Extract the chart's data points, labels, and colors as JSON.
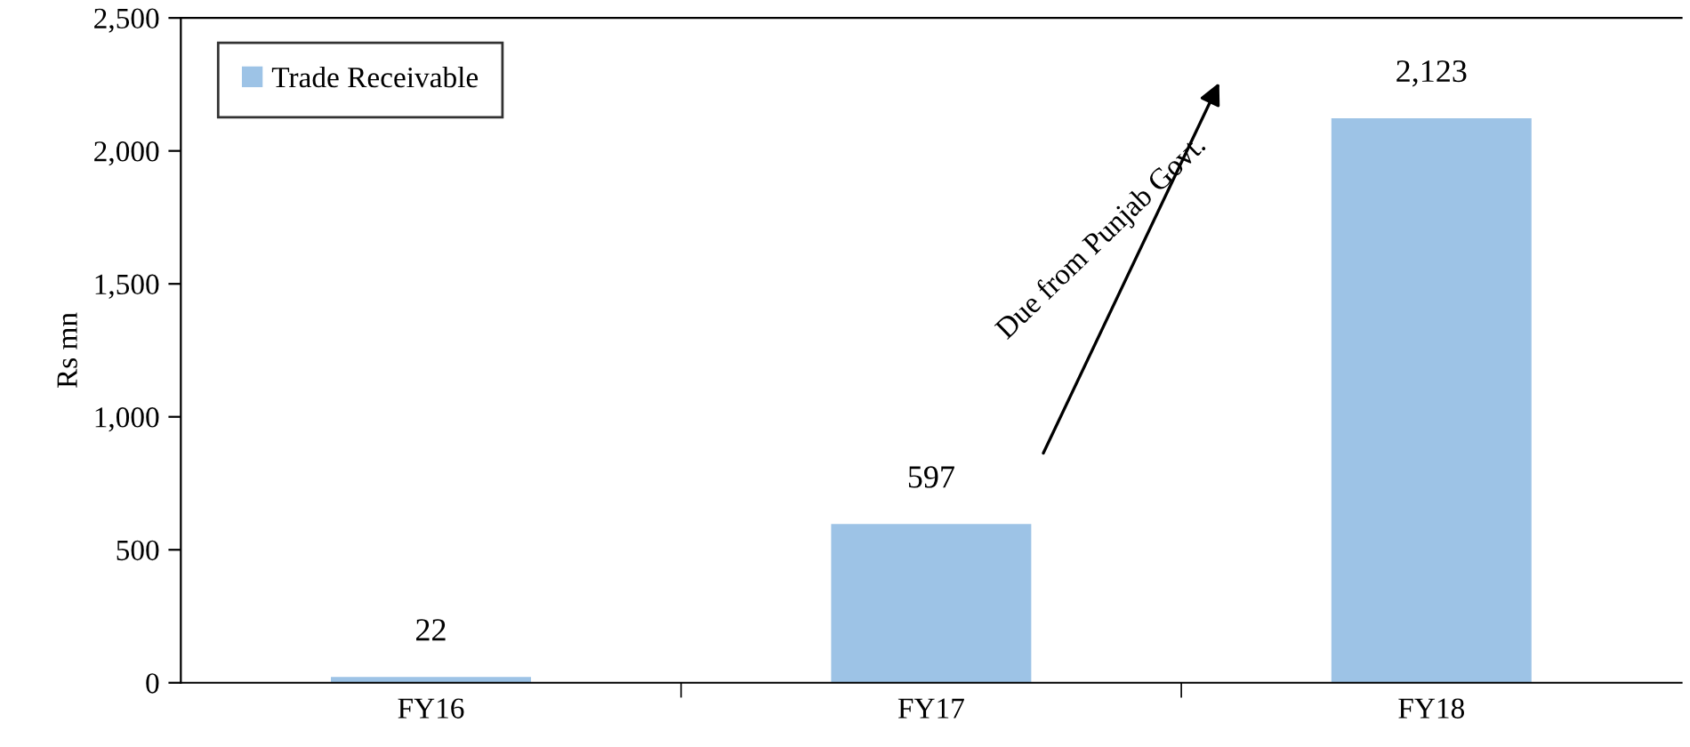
{
  "chart_data": {
    "type": "bar",
    "ylabel": "Rs mn",
    "categories": [
      "FY16",
      "FY17",
      "FY18"
    ],
    "series": [
      {
        "name": "Trade Receivable",
        "color": "#9dc3e6",
        "values": [
          22,
          597,
          2123
        ],
        "value_labels": [
          "22",
          "597",
          "2,123"
        ]
      }
    ],
    "ylim": [
      0,
      2500
    ],
    "yticks": [
      0,
      {
        "value": 500,
        "label": "500"
      },
      {
        "value": 1000,
        "label": "1,000"
      },
      {
        "value": 1500,
        "label": "1,500"
      },
      {
        "value": 2000,
        "label": "2,000"
      },
      {
        "value": 2500,
        "label": "2,500"
      }
    ],
    "grid": false,
    "legend": "top left",
    "annotations": [
      "Due from Punjab Govt."
    ]
  }
}
